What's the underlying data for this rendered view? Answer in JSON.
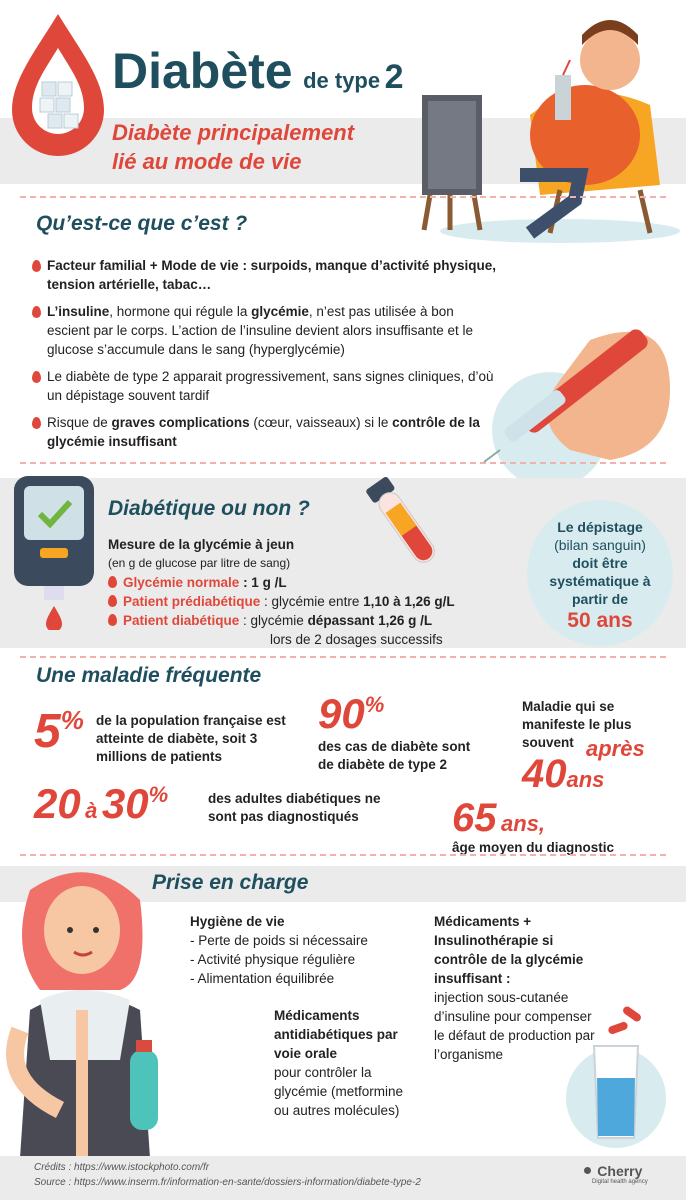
{
  "header": {
    "title_main": "Diabète",
    "title_small": "de type",
    "title_num": "2",
    "subtitle_1": "Diabète principalement",
    "subtitle_2": "lié au mode de vie"
  },
  "section1": {
    "heading": "Qu’est-ce que c’est ?",
    "b1_bold": "Facteur familial +  Mode de vie : surpoids, manque d’activité physique, tension artérielle, tabac…",
    "b2_bold1": "L’insuline",
    "b2_t1": ", hormone qui régule la ",
    "b2_bold2": "glycémie",
    "b2_t2": ", n’est pas utilisée à bon escient par le corps. L’action de l’insuline devient alors insuffisante et le glucose s’accumule dans le sang (hyperglycémie)",
    "b3": "Le diabète de type 2 apparait progressivement, sans signes cliniques, d’où un dépistage souvent tardif",
    "b4_t1": "Risque de ",
    "b4_bold1": "graves complications",
    "b4_t2": " (cœur, vaisseaux) si le ",
    "b4_bold2": "contrôle de la glycémie insuffisant"
  },
  "section2": {
    "heading": "Diabétique ou non ?",
    "measure": "Mesure de la glycémie à jeun",
    "unit_note": "(en g de glucose par litre de sang)",
    "normal_label": "Glycémie normale",
    "normal_val": " : 1 g /L",
    "pre_label": "Patient prédiabétique",
    "pre_t": " : glycémie entre ",
    "pre_val": "1,10 à 1,26 g/L",
    "diab_label": "Patient diabétique",
    "diab_t": " : glycémie ",
    "diab_val": "dépassant 1,26 g /L",
    "diab_note": "lors de 2 dosages successifs",
    "circle_1": "Le dépistage",
    "circle_2": "(bilan sanguin)",
    "circle_3": "doit être systématique à partir de",
    "circle_age": "50 ans"
  },
  "section3": {
    "heading": "Une maladie fréquente",
    "s1_num": "5",
    "s1_pct": "%",
    "s1_text": "de la population française est atteinte de diabète, soit 3 millions de patients",
    "s2_num": "90",
    "s2_pct": "%",
    "s2_text": "des cas de diabète sont de diabète de type 2",
    "s3_text": "Maladie qui se manifeste le plus souvent",
    "s3_apres": "après",
    "s3_num": "40",
    "s3_ans": "ans",
    "s4_a": "20",
    "s4_mid": "à",
    "s4_b": "30",
    "s4_pct": "%",
    "s4_text": "des adultes diabétiques ne sont pas diagnostiqués",
    "s5_num": "65",
    "s5_ans": "ans,",
    "s5_text": "âge moyen du diagnostic"
  },
  "section4": {
    "heading": "Prise en charge",
    "hyg_title": "Hygiène de vie",
    "hyg_items": [
      "- Perte de poids si nécessaire",
      "- Activité physique régulière",
      "- Alimentation équilibrée"
    ],
    "oral_bold": "Médicaments antidiabétiques par voie orale",
    "oral_text": "pour contrôler la glycémie (metformine ou autres molécules)",
    "med_bold": "Médicaments + Insulinothérapie si contrôle de la glycémie insuffisant :",
    "med_text": "injection sous-cutanée d’insuline pour compenser le défaut de production par l’organisme"
  },
  "footer": {
    "credits": "Crédits : https://www.istockphoto.com/fr",
    "source": "Source : https://www.inserm.fr/information-en-sante/dossiers-information/diabete-type-2",
    "brand": "Cherry",
    "brand_sub": "Digital health agency"
  },
  "colors": {
    "accent": "#e0473b",
    "teal": "#1f4f5f",
    "band": "#ebebeb",
    "circle": "#d8ecef"
  }
}
